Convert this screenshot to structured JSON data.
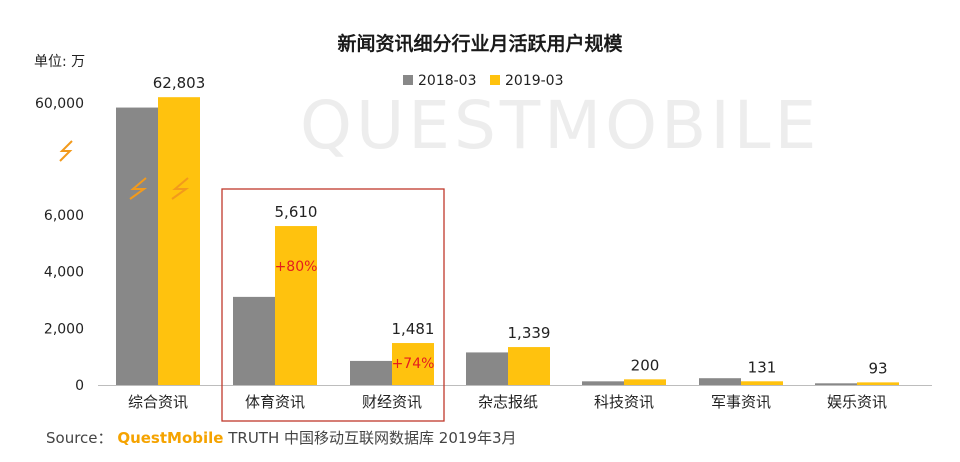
{
  "watermark": "QUESTMOBILE",
  "source": {
    "label": "Source：",
    "brand": "QuestMobile",
    "text": "TRUTH 中国移动互联网数据库 2019年3月"
  },
  "colors": {
    "series_2018": "#888888",
    "series_2019": "#ffc20e",
    "highlight_box": "#c0392b",
    "callout": "#e41e1e",
    "axis_break": "#f29a1c"
  },
  "chart_data": {
    "type": "bar",
    "title": "新闻资讯细分行业月活跃用户规模",
    "unit_label": "单位: 万",
    "categories": [
      "综合资讯",
      "体育资讯",
      "财经资讯",
      "杂志报纸",
      "科技资讯",
      "军事资讯",
      "娱乐资讯"
    ],
    "series": [
      {
        "name": "2018-03",
        "values": [
          57800,
          3110,
          850,
          1150,
          130,
          240,
          60
        ]
      },
      {
        "name": "2019-03",
        "values": [
          62803,
          5610,
          1481,
          1339,
          200,
          131,
          93
        ]
      }
    ],
    "data_labels": [
      "62,803",
      "5,610",
      "1,481",
      "1,339",
      "200",
      "131",
      "93"
    ],
    "callouts": [
      {
        "category": "体育资讯",
        "text": "+80%"
      },
      {
        "category": "财经资讯",
        "text": "+74%"
      }
    ],
    "y_ticks": [
      "0",
      "2,000",
      "4,000",
      "6,000",
      "60,000"
    ],
    "ylim": [
      0,
      62803
    ],
    "axis_break": "between 6,000 and 60,000",
    "highlight": [
      "体育资讯",
      "财经资讯"
    ],
    "legend_position": "top",
    "grid": false
  }
}
